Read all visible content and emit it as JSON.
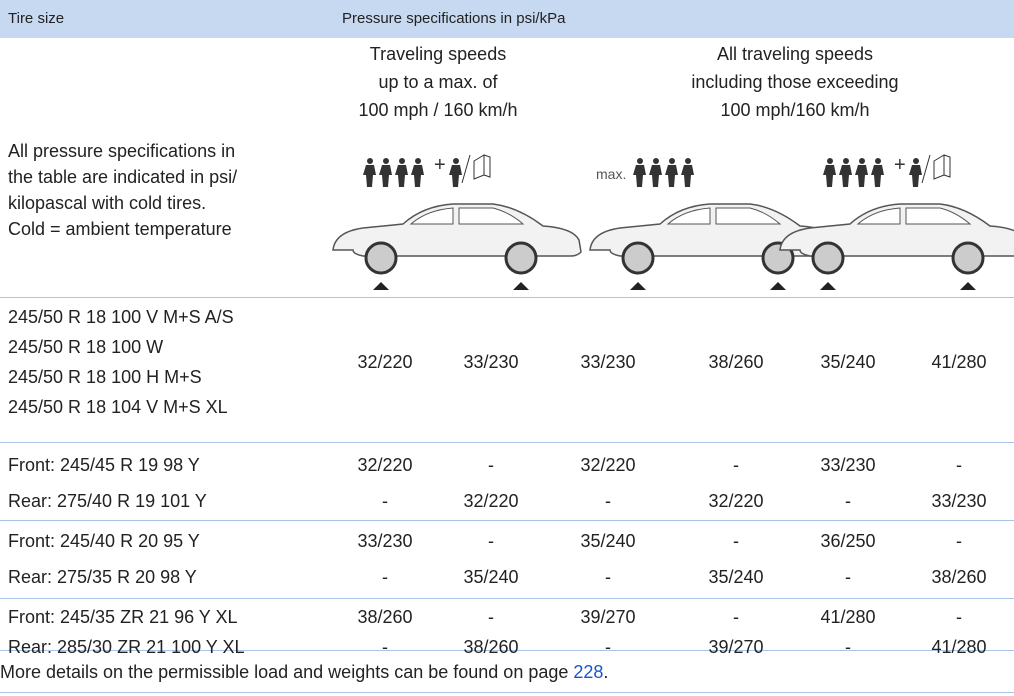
{
  "header": {
    "tire_size": "Tire size",
    "pressure": "Pressure specifications in psi/kPa"
  },
  "conditions": [
    [
      "Traveling speeds",
      "up to a max. of",
      "100 mph / 160 km/h"
    ],
    [
      "All traveling speeds",
      "including those exceeding",
      "100 mph/160 km/h"
    ]
  ],
  "note": [
    "All pressure specifications in",
    "the table are indicated in psi/",
    "kilopascal with cold tires.",
    "Cold = ambient temperature"
  ],
  "icon_max": "max.",
  "rows": [
    {
      "tire": [
        "245/50 R 18 100 V M+S A/S",
        "245/50 R 18 100 W",
        "245/50 R 18 100 H M+S",
        "245/50 R 18 104 V M+S XL"
      ],
      "values": [
        "32/220",
        "33/230",
        "33/230",
        "38/260",
        "35/240",
        "41/280"
      ]
    },
    {
      "tire": [
        "Front: 245/45 R 19 98 Y"
      ],
      "values": [
        "32/220",
        "-",
        "32/220",
        "-",
        "33/230",
        "-"
      ]
    },
    {
      "tire": [
        "Rear: 275/40 R 19 101 Y"
      ],
      "values": [
        "-",
        "32/220",
        "-",
        "32/220",
        "-",
        "33/230"
      ]
    },
    {
      "tire": [
        "Front: 245/40 R 20 95 Y"
      ],
      "values": [
        "33/230",
        "-",
        "35/240",
        "-",
        "36/250",
        "-"
      ]
    },
    {
      "tire": [
        "Rear: 275/35 R 20 98 Y"
      ],
      "values": [
        "-",
        "35/240",
        "-",
        "35/240",
        "-",
        "38/260"
      ]
    },
    {
      "tire": [
        "Front: 245/35 ZR 21 96 Y XL"
      ],
      "values": [
        "38/260",
        "-",
        "39/270",
        "-",
        "41/280",
        "-"
      ]
    },
    {
      "tire": [
        "Rear: 285/30 ZR 21 100 Y XL"
      ],
      "values": [
        "-",
        "38/260",
        "-",
        "39/270",
        "-",
        "41/280"
      ]
    }
  ],
  "footer": {
    "text": "More details on the permissible load and weights can be found on page",
    "page": "228",
    "end": "."
  }
}
